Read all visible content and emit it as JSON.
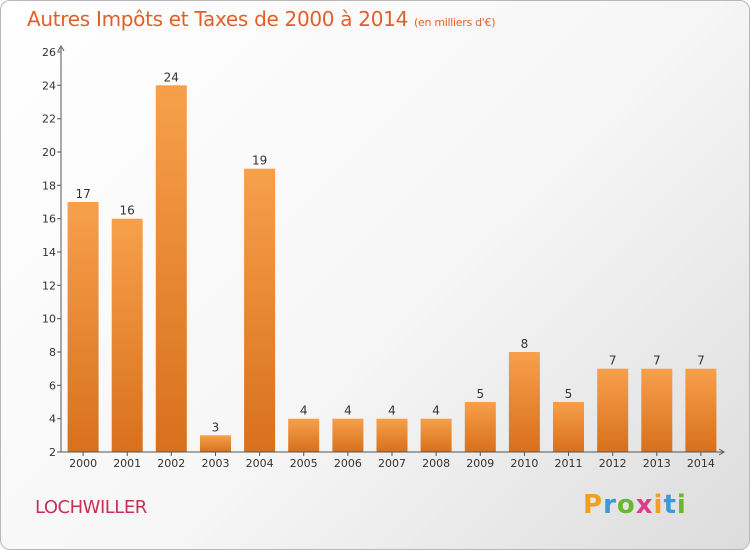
{
  "title": "Autres Impôts et Taxes de 2000 à 2014",
  "unit": "(en milliers d'€)",
  "commune": "LOCHWILLER",
  "logo": {
    "letters": [
      "P",
      "r",
      "o",
      "x",
      "i",
      "t",
      "i"
    ],
    "colors": [
      "#f0a020",
      "#3a9ad9",
      "#6ab82e",
      "#e03a8a",
      "#f0a020",
      "#3a9ad9",
      "#6ab82e"
    ]
  },
  "colors": {
    "bar_top": "#f7a04c",
    "bar_bottom": "#d8701c",
    "axis": "#555555",
    "title": "#e0602a",
    "commune": "#c8305a"
  },
  "chart_data": {
    "type": "bar",
    "title": "Autres Impôts et Taxes de 2000 à 2014",
    "ylabel": "",
    "xlabel": "",
    "categories": [
      "2000",
      "2001",
      "2002",
      "2003",
      "2004",
      "2005",
      "2006",
      "2007",
      "2008",
      "2009",
      "2010",
      "2011",
      "2012",
      "2013",
      "2014"
    ],
    "values": [
      17,
      16,
      24,
      3,
      19,
      4,
      4,
      4,
      4,
      5,
      8,
      5,
      7,
      7,
      7
    ],
    "ylim": [
      2,
      26
    ],
    "yticks": [
      2,
      4,
      6,
      8,
      10,
      12,
      14,
      16,
      18,
      20,
      22,
      24,
      26
    ],
    "grid": false
  }
}
